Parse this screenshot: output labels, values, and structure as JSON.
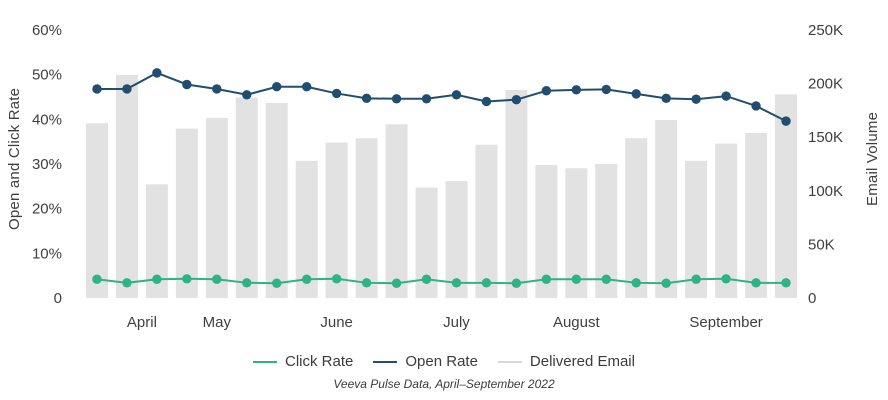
{
  "chart_data": {
    "type": "bar+line combo",
    "x_unit": "week",
    "n_points": 24,
    "caption": "Veeva Pulse Data, April–September 2022",
    "months": [
      {
        "label": "April",
        "tick_index": 1.5
      },
      {
        "label": "May",
        "tick_index": 4
      },
      {
        "label": "June",
        "tick_index": 8
      },
      {
        "label": "July",
        "tick_index": 12
      },
      {
        "label": "August",
        "tick_index": 16
      },
      {
        "label": "September",
        "tick_index": 21
      }
    ],
    "left_axis": {
      "title": "Open and Click Rate",
      "max": 60,
      "unit": "%",
      "ticks": [
        {
          "label": "60%",
          "value": 60
        },
        {
          "label": "50%",
          "value": 50
        },
        {
          "label": "40%",
          "value": 40
        },
        {
          "label": "30%",
          "value": 30
        },
        {
          "label": "20%",
          "value": 20
        },
        {
          "label": "10%",
          "value": 10
        },
        {
          "label": "0",
          "value": 0
        }
      ]
    },
    "right_axis": {
      "title": "Email Volume",
      "max": 250,
      "unit": "K",
      "ticks": [
        {
          "label": "250K",
          "value": 250
        },
        {
          "label": "200K",
          "value": 200
        },
        {
          "label": "150K",
          "value": 150
        },
        {
          "label": "100K",
          "value": 100
        },
        {
          "label": "50K",
          "value": 50
        },
        {
          "label": "0",
          "value": 0
        }
      ]
    },
    "series": [
      {
        "name": "Click Rate",
        "type": "line",
        "axis": "left",
        "unit": "%",
        "color": "#2fb287",
        "values": [
          4.2,
          3.4,
          4.2,
          4.3,
          4.2,
          3.4,
          3.3,
          4.2,
          4.3,
          3.4,
          3.3,
          4.2,
          3.4,
          3.4,
          3.3,
          4.2,
          4.2,
          4.2,
          3.4,
          3.3,
          4.2,
          4.3,
          3.4,
          3.4
        ]
      },
      {
        "name": "Open Rate",
        "type": "line",
        "axis": "left",
        "unit": "%",
        "color": "#214e6f",
        "values": [
          46.8,
          46.8,
          50.4,
          47.8,
          46.8,
          45.5,
          47.3,
          47.3,
          45.8,
          44.7,
          44.6,
          44.6,
          45.5,
          44.0,
          44.4,
          46.4,
          46.6,
          46.7,
          45.7,
          44.7,
          44.5,
          45.2,
          43.0,
          39.6
        ]
      },
      {
        "name": "Delivered Email",
        "type": "bar",
        "axis": "right",
        "unit": "K emails",
        "color": "#e2e2e2",
        "legend_color": "#d9d9d9",
        "values": [
          163,
          208,
          106,
          158,
          168,
          187,
          182,
          128,
          145,
          149,
          162,
          103,
          109,
          143,
          194,
          124,
          121,
          125,
          149,
          166,
          128,
          144,
          154,
          190
        ]
      }
    ]
  }
}
